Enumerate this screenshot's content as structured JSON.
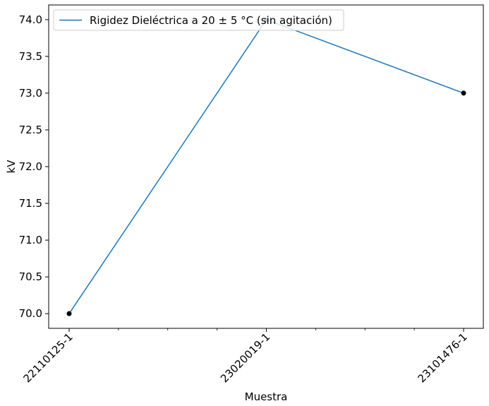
{
  "chart_data": {
    "type": "line",
    "title": "",
    "xlabel": "Muestra",
    "ylabel": "kV",
    "categories": [
      "22110125-1",
      "23020019-1",
      "23101476-1"
    ],
    "series": [
      {
        "name": "Rigidez Dieléctrica a 20 ± 5 °C (sin agitación)",
        "values": [
          70.0,
          74.0,
          73.0
        ],
        "color": "#1f77b4",
        "marker_color": "#000000"
      }
    ],
    "ylim": [
      69.8,
      74.2
    ],
    "yticks": [
      70.0,
      70.5,
      71.0,
      71.5,
      72.0,
      72.5,
      73.0,
      73.5,
      74.0
    ],
    "ytick_labels": [
      "70.0",
      "70.5",
      "71.0",
      "71.5",
      "72.0",
      "72.5",
      "73.0",
      "73.5",
      "74.0"
    ],
    "minor_xticks": true,
    "xtick_rotation_deg": 45,
    "grid": false,
    "legend_position": "upper-left"
  }
}
